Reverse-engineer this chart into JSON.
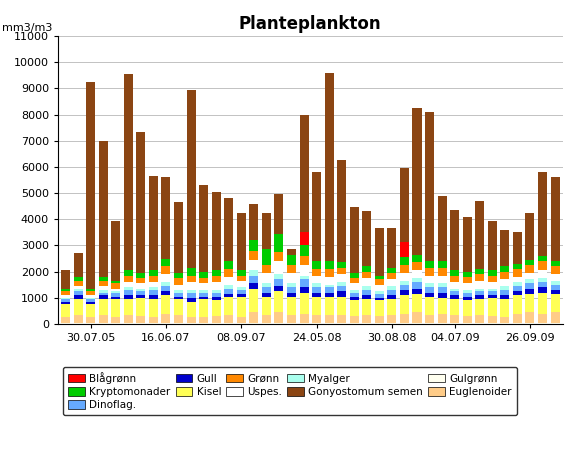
{
  "title": "Planteplankton",
  "ylabel": "mm3/m3",
  "ylim": [
    0,
    11000
  ],
  "yticks": [
    0,
    1000,
    2000,
    3000,
    4000,
    5000,
    6000,
    7000,
    8000,
    9000,
    10000,
    11000
  ],
  "n_bars": 40,
  "xtick_labels": [
    "30.07.05",
    "16.06.07",
    "08.09.07",
    "24.05.08",
    "30.08.08",
    "04.07.09",
    "26.09.09"
  ],
  "xtick_positions": [
    2,
    8,
    14,
    20,
    26,
    31,
    37
  ],
  "series": {
    "Gulgrønn": [
      50,
      50,
      50,
      50,
      50,
      50,
      50,
      50,
      50,
      50,
      50,
      50,
      50,
      50,
      50,
      50,
      50,
      50,
      50,
      50,
      50,
      50,
      50,
      50,
      50,
      50,
      50,
      50,
      50,
      50,
      50,
      50,
      50,
      50,
      50,
      50,
      50,
      50,
      50,
      50
    ],
    "Euglenoider": [
      200,
      300,
      200,
      300,
      200,
      300,
      250,
      200,
      350,
      300,
      200,
      200,
      250,
      300,
      200,
      400,
      300,
      400,
      300,
      350,
      300,
      300,
      300,
      250,
      300,
      250,
      300,
      350,
      400,
      300,
      350,
      300,
      250,
      300,
      250,
      200,
      350,
      400,
      350,
      400
    ],
    "Kisel": [
      500,
      600,
      500,
      600,
      700,
      600,
      700,
      700,
      700,
      600,
      600,
      700,
      600,
      700,
      800,
      900,
      700,
      800,
      700,
      800,
      700,
      700,
      700,
      600,
      600,
      600,
      600,
      700,
      700,
      700,
      600,
      600,
      600,
      600,
      700,
      700,
      700,
      700,
      800,
      700
    ],
    "Gull": [
      100,
      150,
      100,
      150,
      100,
      150,
      100,
      150,
      150,
      100,
      150,
      100,
      150,
      100,
      100,
      200,
      150,
      200,
      150,
      200,
      150,
      150,
      200,
      150,
      150,
      100,
      150,
      200,
      200,
      150,
      200,
      150,
      150,
      150,
      100,
      150,
      150,
      200,
      200,
      150
    ],
    "Dinoflag.": [
      100,
      150,
      100,
      100,
      150,
      200,
      150,
      200,
      200,
      150,
      200,
      150,
      150,
      200,
      150,
      300,
      200,
      250,
      200,
      300,
      200,
      200,
      200,
      150,
      200,
      150,
      200,
      200,
      250,
      200,
      200,
      150,
      150,
      150,
      150,
      200,
      200,
      200,
      200,
      200
    ],
    "Myalger": [
      50,
      100,
      50,
      100,
      50,
      100,
      100,
      100,
      150,
      100,
      100,
      100,
      100,
      150,
      100,
      200,
      150,
      200,
      150,
      150,
      150,
      100,
      150,
      100,
      150,
      100,
      150,
      150,
      150,
      150,
      150,
      100,
      100,
      100,
      100,
      150,
      150,
      150,
      150,
      150
    ],
    "Uspes.": [
      100,
      100,
      100,
      150,
      100,
      200,
      200,
      200,
      300,
      200,
      300,
      250,
      300,
      300,
      250,
      400,
      400,
      500,
      400,
      400,
      300,
      300,
      300,
      250,
      300,
      250,
      250,
      300,
      300,
      300,
      300,
      250,
      250,
      300,
      250,
      250,
      200,
      250,
      300,
      250
    ],
    "Grønn": [
      150,
      200,
      150,
      200,
      200,
      250,
      200,
      250,
      300,
      250,
      250,
      200,
      250,
      300,
      200,
      350,
      300,
      350,
      300,
      350,
      250,
      300,
      250,
      200,
      250,
      200,
      250,
      300,
      300,
      300,
      300,
      250,
      250,
      250,
      250,
      300,
      300,
      300,
      350,
      300
    ],
    "Kryptomonader": [
      100,
      150,
      100,
      150,
      100,
      200,
      200,
      200,
      300,
      200,
      300,
      250,
      200,
      300,
      200,
      400,
      600,
      700,
      400,
      400,
      300,
      300,
      200,
      200,
      200,
      150,
      200,
      300,
      300,
      250,
      250,
      200,
      200,
      200,
      200,
      200,
      200,
      200,
      200,
      200
    ],
    "Blågrønn": [
      0,
      0,
      0,
      0,
      0,
      0,
      0,
      0,
      0,
      0,
      0,
      0,
      0,
      0,
      0,
      0,
      0,
      0,
      0,
      500,
      0,
      0,
      0,
      0,
      0,
      0,
      0,
      600,
      0,
      0,
      0,
      0,
      0,
      0,
      0,
      0,
      0,
      0,
      0,
      0
    ],
    "Gonyostomum semen": [
      700,
      900,
      7900,
      5200,
      2300,
      7500,
      5400,
      3600,
      3100,
      2700,
      6800,
      3300,
      3000,
      2400,
      2200,
      1400,
      1400,
      1500,
      200,
      4500,
      3400,
      7200,
      3900,
      2500,
      2100,
      1800,
      1500,
      2800,
      5600,
      5700,
      2500,
      2300,
      2100,
      2600,
      1900,
      1400,
      1200,
      1800,
      3200,
      3200
    ]
  },
  "colors": {
    "Gulgrønn": "#FFFFF0",
    "Euglenoider": "#FFCC88",
    "Kisel": "#FFFF55",
    "Gull": "#0000CC",
    "Dinoflag.": "#66AAFF",
    "Myalger": "#AAFFEE",
    "Uspes.": "#FFFFFF",
    "Grønn": "#FF8800",
    "Kryptomonader": "#00CC00",
    "Blågrønn": "#FF0000",
    "Gonyostomum semen": "#8B4513"
  },
  "legend_rows": [
    [
      "Blågrønn",
      "Kryptomonader",
      "Dinoflag.",
      "Gull",
      "Kisel"
    ],
    [
      "Grønn",
      "Uspes.",
      "Myalger",
      "Gonyostomum semen"
    ],
    [
      "Gulgrønn",
      "Euglenoider"
    ]
  ]
}
